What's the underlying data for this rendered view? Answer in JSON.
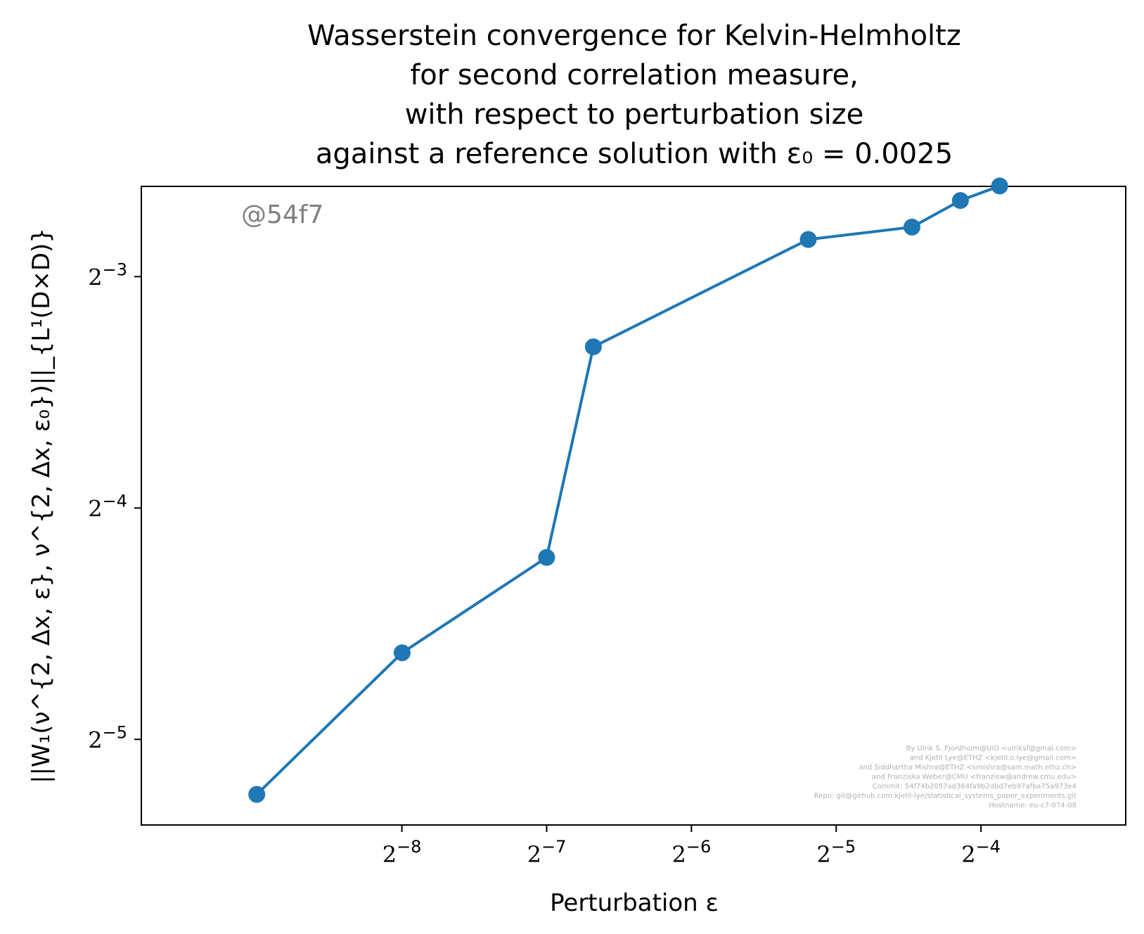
{
  "chart_data": {
    "type": "line",
    "title_lines": [
      "Wasserstein convergence for Kelvin-Helmholtz",
      "for second correlation measure,",
      "with respect to perturbation size",
      "against a reference solution with ε₀ = 0.0025"
    ],
    "xlabel": "Perturbation ε",
    "ylabel": "||W₁(ν^{2, Δx, ε}, ν^{2, Δx, ε₀})||_{L¹(D×D)}",
    "xscale": "log2",
    "yscale": "log2",
    "xlim_log2": [
      -9.8,
      -3.0
    ],
    "ylim_log2": [
      -5.37,
      -2.61
    ],
    "x_ticks": [
      {
        "base": "2",
        "exp": "−8",
        "log2": -8
      },
      {
        "base": "2",
        "exp": "−7",
        "log2": -7
      },
      {
        "base": "2",
        "exp": "−6",
        "log2": -6
      },
      {
        "base": "2",
        "exp": "−5",
        "log2": -5
      },
      {
        "base": "2",
        "exp": "−4",
        "log2": -4
      }
    ],
    "y_ticks": [
      {
        "base": "2",
        "exp": "−3",
        "log2": -3
      },
      {
        "base": "2",
        "exp": "−4",
        "log2": -4
      },
      {
        "base": "2",
        "exp": "−5",
        "log2": -5
      }
    ],
    "grid": false,
    "series": [
      {
        "color": "#1f77b4",
        "marker": "circle",
        "x": [
          0.00195,
          0.00391,
          0.00781,
          0.00977,
          0.02734,
          0.04492,
          0.05664,
          0.06836
        ],
        "y": [
          0.0265,
          0.0405,
          0.0539,
          0.1013,
          0.1397,
          0.145,
          0.157,
          0.164
        ]
      }
    ],
    "watermark": "@54f7",
    "credits": [
      "By Ulrik S. Fjordholm@UiO <ulriksf@gmal.com>",
      "and Kjetil Lye@ETHZ <kjetil.o.lye@gmail.com>",
      "and Siddhartha Mishra@ETHZ <smishra@sam.math.ethz.ch>",
      "and Franziska Weber@CMU <franzisw@andrew.cmu.edu>",
      "Commit: 54f74b2057ad364fa9b2dbd7eb97afba75a973e4",
      "Repo: git@github.com:kjetil-lye/statistical_systems_paper_experiments.git",
      "Hostname: eu-c7-074-08"
    ]
  }
}
